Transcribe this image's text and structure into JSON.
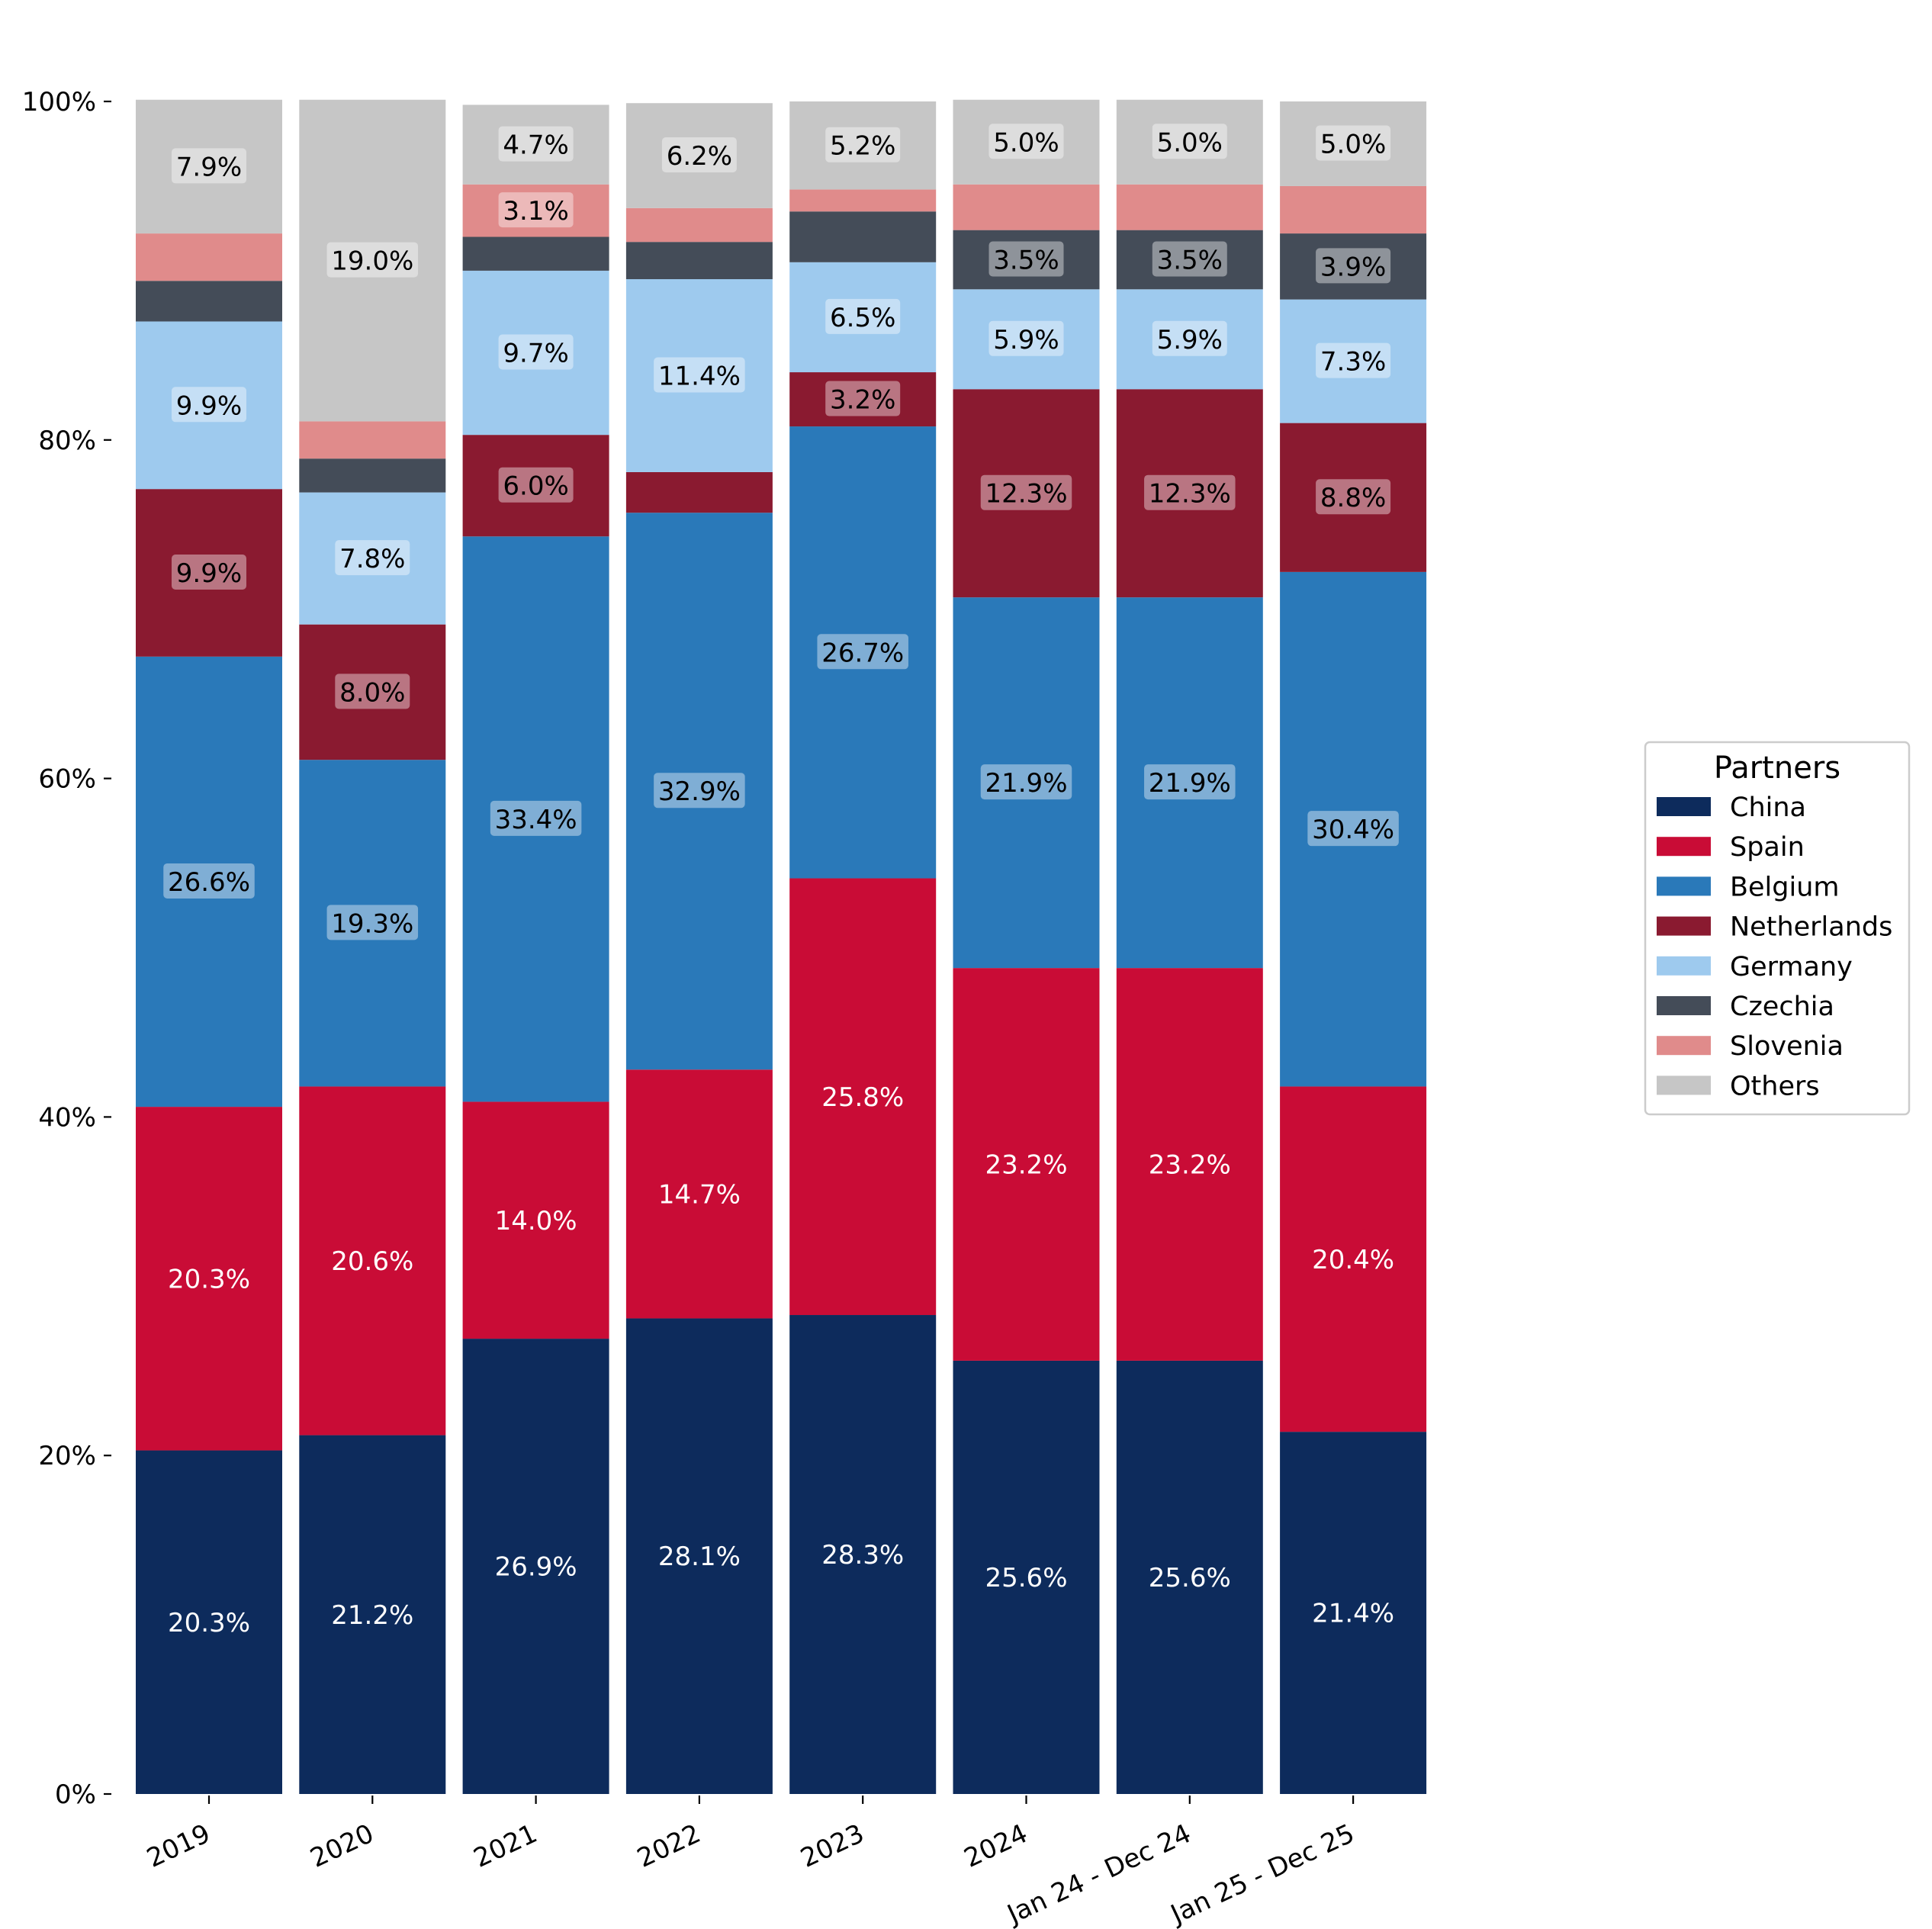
{
  "chart_data": {
    "type": "bar",
    "stacked": true,
    "categories": [
      "2019",
      "2020",
      "2021",
      "2022",
      "2023",
      "2024",
      "Jan 24 - Dec 24",
      "Jan 25 - Dec 25"
    ],
    "ylim": [
      0,
      100
    ],
    "yticks": [
      "0%",
      "20%",
      "40%",
      "60%",
      "80%",
      "100%"
    ],
    "ytick_values": [
      0,
      20,
      40,
      60,
      80,
      100
    ],
    "grid": false,
    "legend": {
      "title": "Partners",
      "placement": "right"
    },
    "series": [
      {
        "name": "China",
        "color": "#0d2b5c",
        "label_color": "#ffffff",
        "label_box": false,
        "values": [
          20.3,
          21.2,
          26.9,
          28.1,
          28.3,
          25.6,
          25.6,
          21.4
        ],
        "labels": [
          "20.3%",
          "21.2%",
          "26.9%",
          "28.1%",
          "28.3%",
          "25.6%",
          "25.6%",
          "21.4%"
        ]
      },
      {
        "name": "Spain",
        "color": "#c90c36",
        "label_color": "#ffffff",
        "label_box": false,
        "values": [
          20.3,
          20.6,
          14.0,
          14.7,
          25.8,
          23.2,
          23.2,
          20.4
        ],
        "labels": [
          "20.3%",
          "20.6%",
          "14.0%",
          "14.7%",
          "25.8%",
          "23.2%",
          "23.2%",
          "20.4%"
        ]
      },
      {
        "name": "Belgium",
        "color": "#2a79b9",
        "label_color": "#000000",
        "label_box": true,
        "values": [
          26.6,
          19.3,
          33.4,
          32.9,
          26.7,
          21.9,
          21.9,
          30.4
        ],
        "labels": [
          "26.6%",
          "19.3%",
          "33.4%",
          "32.9%",
          "26.7%",
          "21.9%",
          "21.9%",
          "30.4%"
        ]
      },
      {
        "name": "Netherlands",
        "color": "#8a1a30",
        "label_color": "#000000",
        "label_box": true,
        "values": [
          9.9,
          8.0,
          6.0,
          2.4,
          3.2,
          12.3,
          12.3,
          8.8
        ],
        "labels": [
          "9.9%",
          "8.0%",
          "6.0%",
          "",
          "3.2%",
          "12.3%",
          "12.3%",
          "8.8%"
        ]
      },
      {
        "name": "Germany",
        "color": "#9ecaee",
        "label_color": "#000000",
        "label_box": true,
        "values": [
          9.9,
          7.8,
          9.7,
          11.4,
          6.5,
          5.9,
          5.9,
          7.3
        ],
        "labels": [
          "9.9%",
          "7.8%",
          "9.7%",
          "11.4%",
          "6.5%",
          "5.9%",
          "5.9%",
          "7.3%"
        ]
      },
      {
        "name": "Czechia",
        "color": "#444c58",
        "label_color": "#000000",
        "label_box": true,
        "values": [
          2.4,
          2.0,
          2.0,
          2.2,
          3.0,
          3.5,
          3.5,
          3.9
        ],
        "labels": [
          "",
          "",
          "",
          "",
          "",
          "3.5%",
          "3.5%",
          "3.9%"
        ]
      },
      {
        "name": "Slovenia",
        "color": "#e08b8b",
        "label_color": "#000000",
        "label_box": true,
        "values": [
          2.8,
          2.2,
          3.1,
          2.0,
          1.3,
          2.7,
          2.7,
          2.8
        ],
        "labels": [
          "",
          "",
          "3.1%",
          "",
          "",
          "",
          "",
          ""
        ]
      },
      {
        "name": "Others",
        "color": "#c6c6c6",
        "label_color": "#000000",
        "label_box": true,
        "values": [
          7.9,
          19.0,
          4.7,
          6.2,
          5.2,
          5.0,
          5.0,
          5.0
        ],
        "labels": [
          "7.9%",
          "19.0%",
          "4.7%",
          "6.2%",
          "5.2%",
          "5.0%",
          "5.0%",
          "5.0%"
        ]
      }
    ]
  }
}
